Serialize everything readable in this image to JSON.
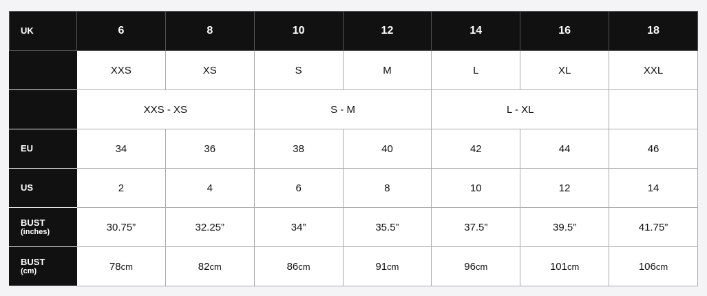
{
  "header": {
    "label": "UK",
    "sizes": [
      "6",
      "8",
      "10",
      "12",
      "14",
      "16",
      "18"
    ]
  },
  "rows": [
    {
      "label": "",
      "sub": "",
      "cells": [
        {
          "text": "XXS",
          "span": 1
        },
        {
          "text": "XS",
          "span": 1
        },
        {
          "text": "S",
          "span": 1
        },
        {
          "text": "M",
          "span": 1
        },
        {
          "text": "L",
          "span": 1
        },
        {
          "text": "XL",
          "span": 1
        },
        {
          "text": "XXL",
          "span": 1
        }
      ]
    },
    {
      "label": "",
      "sub": "",
      "cells": [
        {
          "text": "XXS - XS",
          "span": 2
        },
        {
          "text": "S - M",
          "span": 2
        },
        {
          "text": "L - XL",
          "span": 2
        },
        {
          "text": "",
          "span": 1
        }
      ]
    },
    {
      "label": "EU",
      "sub": "",
      "cells": [
        {
          "text": "34",
          "span": 1
        },
        {
          "text": "36",
          "span": 1
        },
        {
          "text": "38",
          "span": 1
        },
        {
          "text": "40",
          "span": 1
        },
        {
          "text": "42",
          "span": 1
        },
        {
          "text": "44",
          "span": 1
        },
        {
          "text": "46",
          "span": 1
        }
      ]
    },
    {
      "label": "US",
      "sub": "",
      "cells": [
        {
          "text": "2",
          "span": 1
        },
        {
          "text": "4",
          "span": 1
        },
        {
          "text": "6",
          "span": 1
        },
        {
          "text": "8",
          "span": 1
        },
        {
          "text": "10",
          "span": 1
        },
        {
          "text": "12",
          "span": 1
        },
        {
          "text": "14",
          "span": 1
        }
      ]
    },
    {
      "label": "BUST",
      "sub": "(inches)",
      "cells": [
        {
          "text": "30.75”",
          "span": 1
        },
        {
          "text": "32.25”",
          "span": 1
        },
        {
          "text": "34”",
          "span": 1
        },
        {
          "text": "35.5”",
          "span": 1
        },
        {
          "text": "37.5”",
          "span": 1
        },
        {
          "text": "39.5”",
          "span": 1
        },
        {
          "text": "41.75”",
          "span": 1
        }
      ]
    },
    {
      "label": "BUST",
      "sub": "(cm)",
      "cells": [
        {
          "text": "78",
          "unit": "cm",
          "span": 1
        },
        {
          "text": "82",
          "unit": "cm",
          "span": 1
        },
        {
          "text": "86",
          "unit": "cm",
          "span": 1
        },
        {
          "text": "91",
          "unit": "cm",
          "span": 1
        },
        {
          "text": "96",
          "unit": "cm",
          "span": 1
        },
        {
          "text": "101",
          "unit": "cm",
          "span": 1
        },
        {
          "text": "106",
          "unit": "cm",
          "span": 1
        }
      ]
    }
  ]
}
